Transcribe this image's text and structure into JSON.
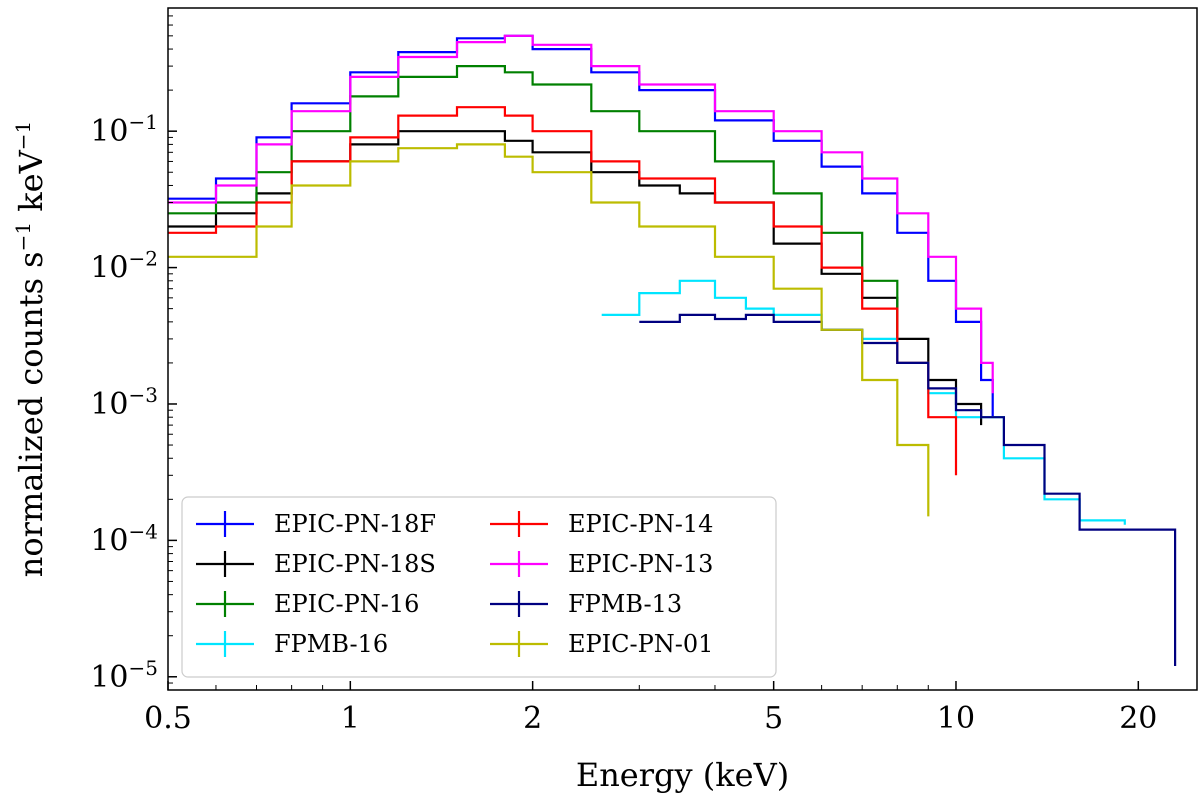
{
  "chart_data": {
    "type": "line",
    "xlabel": "Energy (keV)",
    "ylabel": "normalized counts s",
    "ylabel_sup1": "−1",
    "ylabel_mid": " keV",
    "ylabel_sup2": "−1",
    "xscale": "log",
    "yscale": "log",
    "xlim": [
      0.5,
      25
    ],
    "ylim": [
      8e-06,
      0.8
    ],
    "x_ticks": [
      {
        "value": 0.5,
        "label": "0.5"
      },
      {
        "value": 1,
        "label": "1"
      },
      {
        "value": 2,
        "label": "2"
      },
      {
        "value": 5,
        "label": "5"
      },
      {
        "value": 10,
        "label": "10"
      },
      {
        "value": 20,
        "label": "20"
      }
    ],
    "y_ticks": [
      {
        "value": 0.1,
        "base": "10",
        "exp": "−1"
      },
      {
        "value": 0.01,
        "base": "10",
        "exp": "−2"
      },
      {
        "value": 0.001,
        "base": "10",
        "exp": "−3"
      },
      {
        "value": 0.0001,
        "base": "10",
        "exp": "−4"
      },
      {
        "value": 1e-05,
        "base": "10",
        "exp": "−5"
      }
    ],
    "grid": false,
    "legend_position": "lower-left",
    "series": [
      {
        "name": "EPIC-PN-18F",
        "color": "#0000ff",
        "x": [
          0.5,
          0.6,
          0.7,
          0.8,
          1.0,
          1.2,
          1.5,
          1.8,
          2.0,
          2.5,
          3.0,
          4.0,
          5.0,
          6.0,
          7.0,
          8.0,
          9.0,
          10.0,
          11.0,
          11.5
        ],
        "y": [
          0.032,
          0.045,
          0.09,
          0.16,
          0.27,
          0.38,
          0.48,
          0.5,
          0.4,
          0.27,
          0.2,
          0.12,
          0.085,
          0.055,
          0.035,
          0.018,
          0.008,
          0.004,
          0.0015,
          0.0008
        ]
      },
      {
        "name": "EPIC-PN-18S",
        "color": "#000000",
        "x": [
          0.5,
          0.6,
          0.7,
          0.8,
          1.0,
          1.2,
          1.5,
          1.8,
          2.0,
          2.5,
          3.0,
          3.5,
          4.0,
          5.0,
          6.0,
          7.0,
          8.0,
          9.0,
          10.0,
          11.0
        ],
        "y": [
          0.02,
          0.025,
          0.035,
          0.06,
          0.08,
          0.1,
          0.1,
          0.085,
          0.07,
          0.05,
          0.04,
          0.035,
          0.03,
          0.015,
          0.009,
          0.006,
          0.003,
          0.0015,
          0.001,
          0.0007
        ]
      },
      {
        "name": "EPIC-PN-16",
        "color": "#008000",
        "x": [
          0.5,
          0.6,
          0.7,
          0.8,
          1.0,
          1.2,
          1.5,
          1.8,
          2.0,
          2.5,
          3.0,
          4.0,
          5.0,
          6.0,
          7.0,
          8.0
        ],
        "y": [
          0.025,
          0.03,
          0.05,
          0.1,
          0.18,
          0.25,
          0.3,
          0.27,
          0.22,
          0.14,
          0.1,
          0.06,
          0.035,
          0.018,
          0.008,
          0.003
        ]
      },
      {
        "name": "FPMB-16",
        "color": "#00e5ff",
        "x": [
          2.6,
          3.0,
          3.5,
          4.0,
          4.5,
          5.0,
          6.0,
          7.0,
          8.0,
          9.0,
          10.0,
          12.0,
          14.0,
          16.0,
          19.0
        ],
        "y": [
          0.0045,
          0.0065,
          0.008,
          0.006,
          0.005,
          0.0045,
          0.0035,
          0.003,
          0.002,
          0.0012,
          0.0008,
          0.0004,
          0.0002,
          0.00014,
          0.00013
        ]
      },
      {
        "name": "EPIC-PN-14",
        "color": "#ff0000",
        "x": [
          0.5,
          0.6,
          0.7,
          0.8,
          1.0,
          1.2,
          1.5,
          1.8,
          2.0,
          2.5,
          3.0,
          4.0,
          5.0,
          6.0,
          7.0,
          8.0,
          9.0,
          10.0
        ],
        "y": [
          0.018,
          0.02,
          0.03,
          0.06,
          0.09,
          0.13,
          0.15,
          0.13,
          0.1,
          0.06,
          0.045,
          0.03,
          0.02,
          0.01,
          0.005,
          0.002,
          0.0008,
          0.0003
        ]
      },
      {
        "name": "EPIC-PN-13",
        "color": "#ff00ff",
        "x": [
          0.5,
          0.6,
          0.7,
          0.8,
          1.0,
          1.2,
          1.5,
          1.8,
          2.0,
          2.5,
          3.0,
          4.0,
          5.0,
          6.0,
          7.0,
          8.0,
          9.0,
          10.0,
          11.0,
          11.5
        ],
        "y": [
          0.03,
          0.04,
          0.08,
          0.14,
          0.25,
          0.35,
          0.45,
          0.5,
          0.43,
          0.3,
          0.22,
          0.14,
          0.1,
          0.07,
          0.045,
          0.025,
          0.012,
          0.005,
          0.002,
          0.0012
        ]
      },
      {
        "name": "FPMB-13",
        "color": "#000080",
        "x": [
          3.0,
          3.5,
          4.0,
          4.5,
          5.0,
          6.0,
          7.0,
          8.0,
          9.0,
          10.0,
          11.0,
          12.0,
          14.0,
          16.0,
          19.0,
          23.0
        ],
        "y": [
          0.004,
          0.0045,
          0.0042,
          0.0045,
          0.004,
          0.0035,
          0.0028,
          0.002,
          0.0013,
          0.0009,
          0.0008,
          0.0005,
          0.00022,
          0.00012,
          0.00012,
          1.2e-05
        ]
      },
      {
        "name": "EPIC-PN-01",
        "color": "#bcbc00",
        "x": [
          0.5,
          0.6,
          0.7,
          0.8,
          1.0,
          1.2,
          1.5,
          1.8,
          2.0,
          2.5,
          3.0,
          4.0,
          5.0,
          6.0,
          7.0,
          8.0,
          9.0
        ],
        "y": [
          0.012,
          0.012,
          0.02,
          0.04,
          0.06,
          0.075,
          0.08,
          0.065,
          0.05,
          0.03,
          0.02,
          0.012,
          0.007,
          0.0035,
          0.0015,
          0.0005,
          0.00015
        ]
      }
    ],
    "legend_columns": [
      [
        "EPIC-PN-18F",
        "EPIC-PN-18S",
        "EPIC-PN-16",
        "FPMB-16"
      ],
      [
        "EPIC-PN-14",
        "EPIC-PN-13",
        "FPMB-13",
        "EPIC-PN-01"
      ]
    ]
  }
}
